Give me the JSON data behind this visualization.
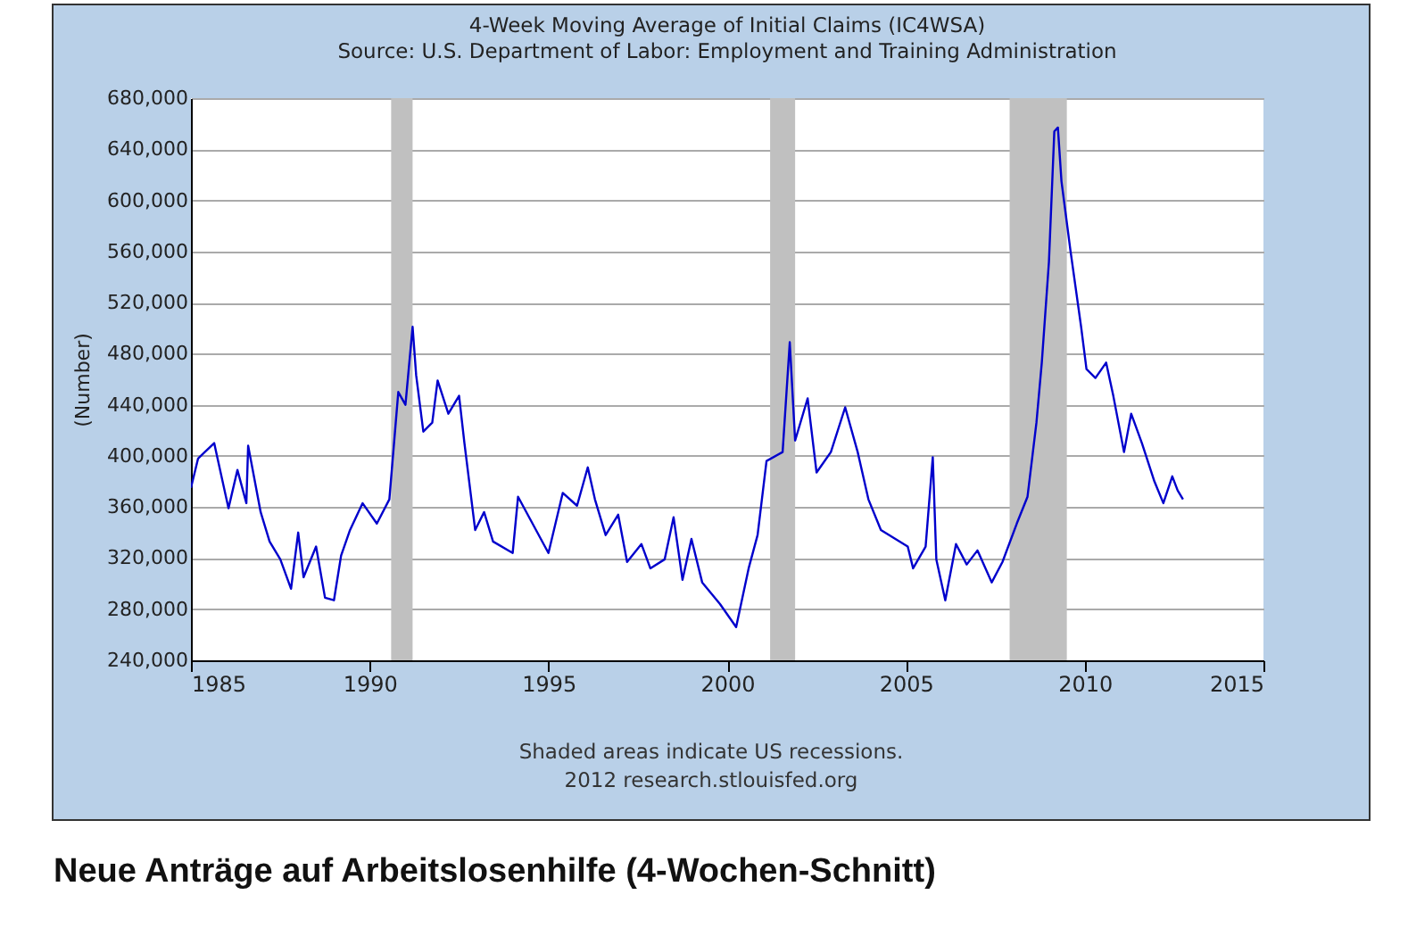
{
  "chart_data": {
    "type": "line",
    "title": "4-Week Moving Average of Initial Claims (IC4WSA)",
    "subtitle": "Source: U.S. Department of Labor: Employment and Training Administration",
    "ylabel": "(Number)",
    "annotations": [
      "Shaded areas indicate US recessions.",
      "2012 research.stlouisfed.org",
      "Neue Anträge auf Arbeitslosenhilfe (4-Wochen-Schnitt)"
    ],
    "x": [
      1985.0,
      1985.2,
      1985.65,
      1986.05,
      1986.3,
      1986.55,
      1986.6,
      1986.95,
      1987.2,
      1987.5,
      1987.8,
      1988.0,
      1988.15,
      1988.5,
      1988.75,
      1989.0,
      1989.2,
      1989.45,
      1989.8,
      1990.2,
      1990.55,
      1990.8,
      1991.0,
      1991.2,
      1991.3,
      1991.5,
      1991.75,
      1991.9,
      1992.2,
      1992.5,
      1992.65,
      1992.95,
      1993.2,
      1993.45,
      1994.0,
      1994.15,
      1995.0,
      1995.4,
      1995.8,
      1996.1,
      1996.3,
      1996.6,
      1996.95,
      1997.2,
      1997.6,
      1997.85,
      1998.25,
      1998.5,
      1998.75,
      1999.0,
      1999.3,
      1999.8,
      2000.25,
      2000.6,
      2000.85,
      2001.1,
      2001.55,
      2001.75,
      2001.9,
      2002.25,
      2002.5,
      2002.9,
      2003.3,
      2003.65,
      2003.95,
      2004.3,
      2005.05,
      2005.2,
      2005.55,
      2005.75,
      2005.85,
      2006.1,
      2006.4,
      2006.7,
      2007.0,
      2007.4,
      2007.7,
      2008.1,
      2008.4,
      2008.65,
      2008.8,
      2009.0,
      2009.15,
      2009.25,
      2009.35,
      2009.6,
      2009.9,
      2010.05,
      2010.3,
      2010.6,
      2010.8,
      2011.1,
      2011.3,
      2011.6,
      2011.95,
      2012.2,
      2012.45,
      2012.6,
      2012.75
    ],
    "series": [
      {
        "color": "#0000cc",
        "values": [
          375000,
          398000,
          410000,
          359000,
          389000,
          363000,
          408000,
          356000,
          333000,
          319000,
          296000,
          340000,
          305000,
          329000,
          289000,
          287000,
          322000,
          342000,
          363000,
          347000,
          366000,
          450000,
          440000,
          501000,
          463000,
          419000,
          426000,
          459000,
          433000,
          447000,
          410000,
          342000,
          356000,
          333000,
          324000,
          368000,
          324000,
          371000,
          361000,
          391000,
          366000,
          338000,
          354000,
          317000,
          331000,
          312000,
          319000,
          352000,
          303000,
          335000,
          301000,
          284000,
          266000,
          312000,
          338000,
          396000,
          403000,
          489000,
          412000,
          445000,
          387000,
          403000,
          438000,
          403000,
          366000,
          342000,
          329000,
          312000,
          329000,
          399000,
          319000,
          287000,
          331000,
          315000,
          326000,
          301000,
          317000,
          347000,
          368000,
          426000,
          473000,
          552000,
          654000,
          657000,
          615000,
          561000,
          501000,
          468000,
          461000,
          473000,
          447000,
          403000,
          433000,
          410000,
          380000,
          363000,
          384000,
          373000,
          366000
        ]
      }
    ],
    "xlim": [
      1985,
      2015
    ],
    "xticks": [
      1985,
      1990,
      1995,
      2000,
      2005,
      2010,
      2015
    ],
    "ylim": [
      240000,
      680000
    ],
    "yticks": [
      {
        "value": 240000,
        "label": "240,000"
      },
      {
        "value": 280000,
        "label": "280,000"
      },
      {
        "value": 320000,
        "label": "320,000"
      },
      {
        "value": 360000,
        "label": "360,000"
      },
      {
        "value": 400000,
        "label": "400,000"
      },
      {
        "value": 440000,
        "label": "440,000"
      },
      {
        "value": 480000,
        "label": "480,000"
      },
      {
        "value": 520000,
        "label": "520,000"
      },
      {
        "value": 560000,
        "label": "560,000"
      },
      {
        "value": 600000,
        "label": "600,000"
      },
      {
        "value": 640000,
        "label": "640,000"
      },
      {
        "value": 680000,
        "label": "680,000"
      }
    ],
    "bands": [
      {
        "axis": "x",
        "from": 1990.6,
        "to": 1991.2,
        "color": "#c0c0c0"
      },
      {
        "axis": "x",
        "from": 2001.2,
        "to": 2001.9,
        "color": "#c0c0c0"
      },
      {
        "axis": "x",
        "from": 2007.9,
        "to": 2009.5,
        "color": "#c0c0c0"
      }
    ],
    "grid": "y",
    "line_style": "solid"
  }
}
